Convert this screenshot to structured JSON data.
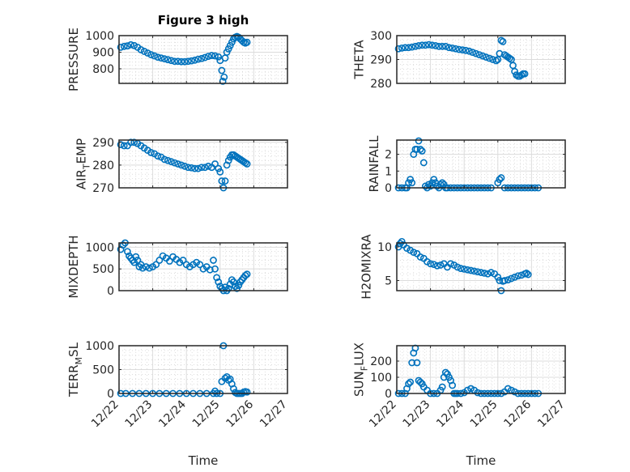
{
  "figure": {
    "title": "Figure 3 high"
  },
  "chart_data": [
    {
      "type": "scatter",
      "title": "Figure 3 high",
      "xlabel": "",
      "ylabel": "PRESSURE",
      "ylabel_parts": [
        [
          "PRESSURE",
          ""
        ]
      ],
      "xlim": [
        0,
        5
      ],
      "ylim": [
        712,
        1000
      ],
      "yticks": [
        800,
        900,
        1000
      ],
      "xticks": [
        0,
        1,
        2,
        3,
        4,
        5
      ],
      "xticklabels": [
        "12/22",
        "12/23",
        "12/24",
        "12/25",
        "12/26",
        "12/27"
      ],
      "show_xticklabels": false,
      "grid": true,
      "marker": "open-circle",
      "color": "#0072BD",
      "series": [
        {
          "name": "PRESSURE",
          "x": [
            0.05,
            0.15,
            0.25,
            0.35,
            0.45,
            0.55,
            0.65,
            0.75,
            0.85,
            0.95,
            1.05,
            1.15,
            1.25,
            1.35,
            1.45,
            1.55,
            1.65,
            1.75,
            1.85,
            1.95,
            2.05,
            2.15,
            2.25,
            2.35,
            2.45,
            2.55,
            2.65,
            2.75,
            2.85,
            2.95,
            3.0,
            3.05,
            3.08,
            3.12,
            3.15,
            3.2,
            3.25,
            3.3,
            3.35,
            3.4,
            3.45,
            3.5,
            3.55,
            3.6,
            3.65,
            3.7,
            3.75,
            3.8
          ],
          "y": [
            930,
            935,
            938,
            945,
            940,
            930,
            915,
            905,
            895,
            885,
            878,
            870,
            865,
            860,
            855,
            850,
            845,
            845,
            843,
            843,
            845,
            848,
            852,
            858,
            862,
            868,
            875,
            880,
            878,
            872,
            850,
            790,
            725,
            750,
            865,
            900,
            920,
            940,
            960,
            980,
            990,
            995,
            990,
            980,
            970,
            960,
            955,
            960
          ]
        }
      ]
    },
    {
      "type": "scatter",
      "title": "",
      "ylabel": "THETA",
      "ylabel_parts": [
        [
          "THETA",
          ""
        ]
      ],
      "xlim": [
        0,
        5
      ],
      "ylim": [
        280,
        300
      ],
      "yticks": [
        280,
        290,
        300
      ],
      "xticks": [
        0,
        1,
        2,
        3,
        4,
        5
      ],
      "xticklabels": [
        "12/22",
        "12/23",
        "12/24",
        "12/25",
        "12/26",
        "12/27"
      ],
      "show_xticklabels": false,
      "grid": true,
      "marker": "open-circle",
      "color": "#0072BD",
      "series": [
        {
          "name": "THETA",
          "x": [
            0.05,
            0.15,
            0.25,
            0.35,
            0.45,
            0.55,
            0.65,
            0.75,
            0.85,
            0.95,
            1.05,
            1.15,
            1.25,
            1.35,
            1.45,
            1.55,
            1.65,
            1.75,
            1.85,
            1.95,
            2.05,
            2.15,
            2.25,
            2.35,
            2.45,
            2.55,
            2.65,
            2.75,
            2.85,
            2.95,
            3.0,
            3.05,
            3.1,
            3.15,
            3.2,
            3.25,
            3.3,
            3.35,
            3.4,
            3.45,
            3.5,
            3.55,
            3.6,
            3.65,
            3.7,
            3.75,
            3.8
          ],
          "y": [
            294.5,
            294.8,
            295,
            295,
            295.2,
            295.5,
            295.8,
            296,
            296,
            296.2,
            296,
            295.8,
            295.5,
            295.5,
            295.5,
            295,
            294.8,
            294.5,
            294.2,
            294,
            293.8,
            293.5,
            293,
            292.5,
            292,
            291.5,
            291,
            290.5,
            290,
            289.5,
            290,
            292.5,
            298,
            297.5,
            292,
            291.5,
            291,
            290.5,
            290,
            287.5,
            285,
            283.5,
            283,
            283,
            283.5,
            284,
            284
          ]
        }
      ]
    },
    {
      "type": "scatter",
      "title": "",
      "ylabel": "AIR_TEMP",
      "ylabel_parts": [
        [
          "AIR",
          ""
        ],
        [
          "T",
          "sub"
        ],
        [
          "EMP",
          ""
        ]
      ],
      "xlim": [
        0,
        5
      ],
      "ylim": [
        270,
        291
      ],
      "yticks": [
        270,
        280,
        290
      ],
      "xticks": [
        0,
        1,
        2,
        3,
        4,
        5
      ],
      "xticklabels": [
        "12/22",
        "12/23",
        "12/24",
        "12/25",
        "12/26",
        "12/27"
      ],
      "show_xticklabels": false,
      "grid": true,
      "marker": "open-circle",
      "color": "#0072BD",
      "series": [
        {
          "name": "AIR_TEMP",
          "x": [
            0.05,
            0.15,
            0.25,
            0.35,
            0.45,
            0.55,
            0.65,
            0.75,
            0.85,
            0.95,
            1.05,
            1.15,
            1.25,
            1.35,
            1.45,
            1.55,
            1.65,
            1.75,
            1.85,
            1.95,
            2.05,
            2.15,
            2.25,
            2.35,
            2.45,
            2.55,
            2.65,
            2.75,
            2.85,
            2.95,
            3.0,
            3.05,
            3.1,
            3.15,
            3.2,
            3.25,
            3.3,
            3.35,
            3.4,
            3.45,
            3.5,
            3.55,
            3.6,
            3.65,
            3.7,
            3.75,
            3.8
          ],
          "y": [
            289,
            288.5,
            288.5,
            290,
            290,
            289.5,
            288.5,
            287.5,
            286.5,
            285.5,
            285,
            284,
            283.5,
            282.5,
            282,
            281.5,
            281,
            280.5,
            280,
            279.5,
            279,
            278.8,
            278.5,
            278.5,
            279,
            279,
            279.5,
            279,
            280.5,
            278.5,
            277,
            273,
            270,
            273,
            280,
            282,
            283.5,
            284.5,
            284.5,
            284,
            283.5,
            283,
            282.5,
            282,
            281.5,
            281,
            280.5
          ]
        }
      ]
    },
    {
      "type": "scatter",
      "title": "",
      "ylabel": "RAINFALL",
      "ylabel_parts": [
        [
          "RAINFALL",
          ""
        ]
      ],
      "xlim": [
        0,
        5
      ],
      "ylim": [
        0,
        2.85
      ],
      "yticks": [
        0,
        1,
        2
      ],
      "xticks": [
        0,
        1,
        2,
        3,
        4,
        5
      ],
      "xticklabels": [
        "12/22",
        "12/23",
        "12/24",
        "12/25",
        "12/26",
        "12/27"
      ],
      "show_xticklabels": false,
      "grid": true,
      "marker": "open-circle",
      "color": "#0072BD",
      "series": [
        {
          "name": "RAINFALL",
          "x": [
            0.05,
            0.15,
            0.25,
            0.3,
            0.35,
            0.4,
            0.45,
            0.5,
            0.55,
            0.6,
            0.65,
            0.7,
            0.75,
            0.8,
            0.85,
            0.9,
            0.95,
            1.0,
            1.05,
            1.1,
            1.15,
            1.2,
            1.25,
            1.3,
            1.35,
            1.4,
            1.45,
            1.5,
            1.6,
            1.7,
            1.8,
            1.9,
            2.0,
            2.1,
            2.2,
            2.3,
            2.4,
            2.5,
            2.6,
            2.7,
            2.8,
            3.0,
            3.05,
            3.1,
            3.2,
            3.3,
            3.4,
            3.5,
            3.6,
            3.7,
            3.8,
            3.9,
            4.0,
            4.1,
            4.2
          ],
          "y": [
            0,
            0,
            0,
            0,
            0.3,
            0.5,
            0.3,
            2.0,
            2.3,
            2.3,
            2.8,
            2.3,
            2.2,
            1.5,
            0.1,
            0,
            0.2,
            0.1,
            0.3,
            0.5,
            0.3,
            0.1,
            0,
            0.2,
            0.3,
            0.2,
            0,
            0,
            0,
            0,
            0,
            0,
            0,
            0,
            0,
            0,
            0,
            0,
            0,
            0,
            0,
            0.3,
            0.5,
            0.6,
            0,
            0,
            0,
            0,
            0,
            0,
            0,
            0,
            0,
            0,
            0
          ]
        }
      ]
    },
    {
      "type": "scatter",
      "title": "",
      "ylabel": "MIXDEPTH",
      "ylabel_parts": [
        [
          "MIXDEPTH",
          ""
        ]
      ],
      "xlim": [
        0,
        5
      ],
      "ylim": [
        0,
        1100
      ],
      "yticks": [
        0,
        500,
        1000
      ],
      "xticks": [
        0,
        1,
        2,
        3,
        4,
        5
      ],
      "xticklabels": [
        "12/22",
        "12/23",
        "12/24",
        "12/25",
        "12/26",
        "12/27"
      ],
      "show_xticklabels": false,
      "grid": true,
      "marker": "open-circle",
      "color": "#0072BD",
      "series": [
        {
          "name": "MIXDEPTH",
          "x": [
            0.05,
            0.12,
            0.18,
            0.25,
            0.3,
            0.35,
            0.4,
            0.45,
            0.5,
            0.55,
            0.6,
            0.65,
            0.7,
            0.8,
            0.9,
            1.0,
            1.1,
            1.2,
            1.3,
            1.4,
            1.5,
            1.6,
            1.7,
            1.8,
            1.9,
            2.0,
            2.1,
            2.2,
            2.3,
            2.4,
            2.5,
            2.6,
            2.7,
            2.8,
            2.85,
            2.9,
            2.95,
            3.0,
            3.05,
            3.1,
            3.15,
            3.2,
            3.25,
            3.3,
            3.35,
            3.4,
            3.45,
            3.5,
            3.55,
            3.6,
            3.65,
            3.7,
            3.75,
            3.8
          ],
          "y": [
            950,
            1050,
            1100,
            900,
            800,
            750,
            700,
            650,
            780,
            700,
            550,
            600,
            520,
            550,
            520,
            550,
            600,
            700,
            800,
            750,
            680,
            780,
            720,
            650,
            700,
            600,
            550,
            600,
            650,
            600,
            500,
            550,
            480,
            700,
            500,
            300,
            200,
            100,
            50,
            0,
            80,
            0,
            50,
            150,
            250,
            200,
            100,
            50,
            120,
            200,
            250,
            300,
            350,
            380
          ]
        }
      ]
    },
    {
      "type": "scatter",
      "title": "",
      "ylabel": "H2OMIXRA",
      "ylabel_parts": [
        [
          "H2OMIXRA",
          ""
        ]
      ],
      "xlim": [
        0,
        5
      ],
      "ylim": [
        3.5,
        10.6
      ],
      "yticks": [
        5,
        10
      ],
      "xticks": [
        0,
        1,
        2,
        3,
        4,
        5
      ],
      "xticklabels": [
        "12/22",
        "12/23",
        "12/24",
        "12/25",
        "12/26",
        "12/27"
      ],
      "show_xticklabels": false,
      "grid": true,
      "marker": "open-circle",
      "color": "#0072BD",
      "series": [
        {
          "name": "H2OMIXRA",
          "x": [
            0.05,
            0.1,
            0.15,
            0.2,
            0.3,
            0.4,
            0.5,
            0.6,
            0.7,
            0.8,
            0.9,
            1.0,
            1.1,
            1.2,
            1.3,
            1.4,
            1.5,
            1.6,
            1.7,
            1.8,
            1.9,
            2.0,
            2.1,
            2.2,
            2.3,
            2.4,
            2.5,
            2.6,
            2.7,
            2.8,
            2.9,
            3.0,
            3.05,
            3.1,
            3.15,
            3.2,
            3.3,
            3.4,
            3.5,
            3.6,
            3.7,
            3.8,
            3.85,
            3.9
          ],
          "y": [
            10,
            10.5,
            10.8,
            10.3,
            9.8,
            9.5,
            9.2,
            9,
            8.5,
            8.3,
            7.8,
            7.5,
            7.4,
            7.2,
            7.3,
            7.5,
            7.0,
            7.5,
            7.3,
            7.0,
            6.8,
            6.7,
            6.6,
            6.5,
            6.4,
            6.3,
            6.2,
            6.1,
            6.0,
            6.2,
            6.0,
            5.5,
            5.0,
            3.5,
            4.9,
            5.0,
            5.1,
            5.3,
            5.5,
            5.7,
            5.8,
            6.0,
            6.1,
            5.9
          ]
        }
      ]
    },
    {
      "type": "scatter",
      "title": "",
      "xlabel": "Time",
      "ylabel": "TERR_MSL",
      "ylabel_parts": [
        [
          "TERR",
          ""
        ],
        [
          "M",
          "sub"
        ],
        [
          "SL",
          ""
        ]
      ],
      "xlim": [
        0,
        5
      ],
      "ylim": [
        0,
        1000
      ],
      "yticks": [
        0,
        500,
        1000
      ],
      "xticks": [
        0,
        1,
        2,
        3,
        4,
        5
      ],
      "xticklabels": [
        "12/22",
        "12/23",
        "12/24",
        "12/25",
        "12/26",
        "12/27"
      ],
      "show_xticklabels": true,
      "grid": true,
      "marker": "open-circle",
      "color": "#0072BD",
      "series": [
        {
          "name": "TERR_MSL",
          "x": [
            0.05,
            0.2,
            0.4,
            0.6,
            0.8,
            1.0,
            1.2,
            1.4,
            1.6,
            1.8,
            2.0,
            2.2,
            2.4,
            2.6,
            2.8,
            2.85,
            2.9,
            3.0,
            3.05,
            3.1,
            3.15,
            3.2,
            3.25,
            3.3,
            3.35,
            3.4,
            3.45,
            3.5,
            3.55,
            3.6,
            3.65,
            3.7,
            3.75,
            3.8
          ],
          "y": [
            0,
            0,
            0,
            0,
            0,
            0,
            0,
            0,
            0,
            0,
            0,
            0,
            0,
            0,
            0,
            50,
            0,
            0,
            250,
            1000,
            320,
            350,
            280,
            300,
            200,
            100,
            20,
            0,
            0,
            0,
            0,
            30,
            40,
            30
          ]
        }
      ]
    },
    {
      "type": "scatter",
      "title": "",
      "xlabel": "Time",
      "ylabel": "SUN_FLUX",
      "ylabel_parts": [
        [
          "SUN",
          ""
        ],
        [
          "F",
          "sub"
        ],
        [
          "LUX",
          ""
        ]
      ],
      "xlim": [
        0,
        5
      ],
      "ylim": [
        0,
        295
      ],
      "yticks": [
        0,
        100,
        200
      ],
      "xticks": [
        0,
        1,
        2,
        3,
        4,
        5
      ],
      "xticklabels": [
        "12/22",
        "12/23",
        "12/24",
        "12/25",
        "12/26",
        "12/27"
      ],
      "show_xticklabels": true,
      "grid": true,
      "marker": "open-circle",
      "color": "#0072BD",
      "series": [
        {
          "name": "SUN_FLUX",
          "x": [
            0.05,
            0.15,
            0.25,
            0.3,
            0.35,
            0.4,
            0.45,
            0.5,
            0.55,
            0.6,
            0.65,
            0.7,
            0.75,
            0.8,
            0.9,
            1.0,
            1.1,
            1.2,
            1.3,
            1.35,
            1.4,
            1.45,
            1.5,
            1.55,
            1.6,
            1.65,
            1.7,
            1.75,
            1.8,
            1.9,
            2.0,
            2.1,
            2.2,
            2.3,
            2.4,
            2.5,
            2.6,
            2.7,
            2.8,
            2.9,
            3.0,
            3.1,
            3.2,
            3.3,
            3.4,
            3.5,
            3.6,
            3.7,
            3.8,
            3.9,
            4.0,
            4.1,
            4.2
          ],
          "y": [
            0,
            0,
            0,
            30,
            60,
            70,
            190,
            250,
            280,
            190,
            80,
            70,
            60,
            40,
            20,
            0,
            0,
            0,
            20,
            40,
            100,
            130,
            120,
            100,
            80,
            50,
            0,
            0,
            0,
            0,
            5,
            20,
            30,
            20,
            5,
            0,
            0,
            0,
            0,
            0,
            0,
            0,
            10,
            30,
            20,
            10,
            0,
            0,
            0,
            0,
            0,
            0,
            0
          ]
        }
      ]
    }
  ]
}
